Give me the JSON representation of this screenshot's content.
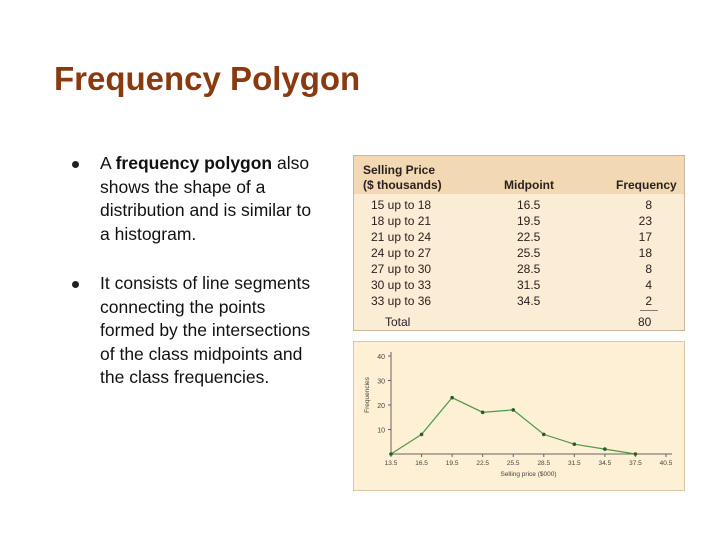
{
  "slide": {
    "title": "Frequency Polygon",
    "bullets": [
      {
        "pre": "A ",
        "bold": "frequency polygon",
        "post": " also shows the shape of a distribution and is similar to a histogram."
      },
      {
        "pre": "It consists of line segments connecting the points formed by the intersections of the class midpoints and the class frequencies.",
        "bold": "",
        "post": ""
      }
    ]
  },
  "table": {
    "headers": {
      "price1": "Selling Price",
      "price2": "($ thousands)",
      "midpoint": "Midpoint",
      "frequency": "Frequency"
    },
    "rows": [
      {
        "class": "15 up to 18",
        "midpoint": "16.5",
        "frequency": "8"
      },
      {
        "class": "18 up to 21",
        "midpoint": "19.5",
        "frequency": "23"
      },
      {
        "class": "21 up to 24",
        "midpoint": "22.5",
        "frequency": "17"
      },
      {
        "class": "24 up to 27",
        "midpoint": "25.5",
        "frequency": "18"
      },
      {
        "class": "27 up to 30",
        "midpoint": "28.5",
        "frequency": "8"
      },
      {
        "class": "30 up to 33",
        "midpoint": "31.5",
        "frequency": "4"
      },
      {
        "class": "33 up to 36",
        "midpoint": "34.5",
        "frequency": "2"
      }
    ],
    "total_label": "Total",
    "total_value": "80"
  },
  "chart_data": {
    "type": "line",
    "x": [
      13.5,
      16.5,
      19.5,
      22.5,
      25.5,
      28.5,
      31.5,
      34.5,
      37.5
    ],
    "values": [
      0,
      8,
      23,
      17,
      18,
      8,
      4,
      2,
      0
    ],
    "x_tick_labels": [
      "13.5",
      "16.5",
      "19.5",
      "22.5",
      "25.5",
      "28.5",
      "31.5",
      "34.5",
      "37.5",
      "40.5"
    ],
    "x_ticks": [
      13.5,
      16.5,
      19.5,
      22.5,
      25.5,
      28.5,
      31.5,
      34.5,
      37.5,
      40.5
    ],
    "y_ticks": [
      10,
      20,
      30,
      40
    ],
    "y_tick_labels": [
      "10",
      "20",
      "30",
      "40"
    ],
    "xlabel": "Selling price ($000)",
    "ylabel": "Frequencies",
    "xlim": [
      13.5,
      40.5
    ],
    "ylim": [
      0,
      40
    ],
    "grid": false,
    "line_color": "#4a9a4a",
    "point_color": "#2a5a2a"
  }
}
